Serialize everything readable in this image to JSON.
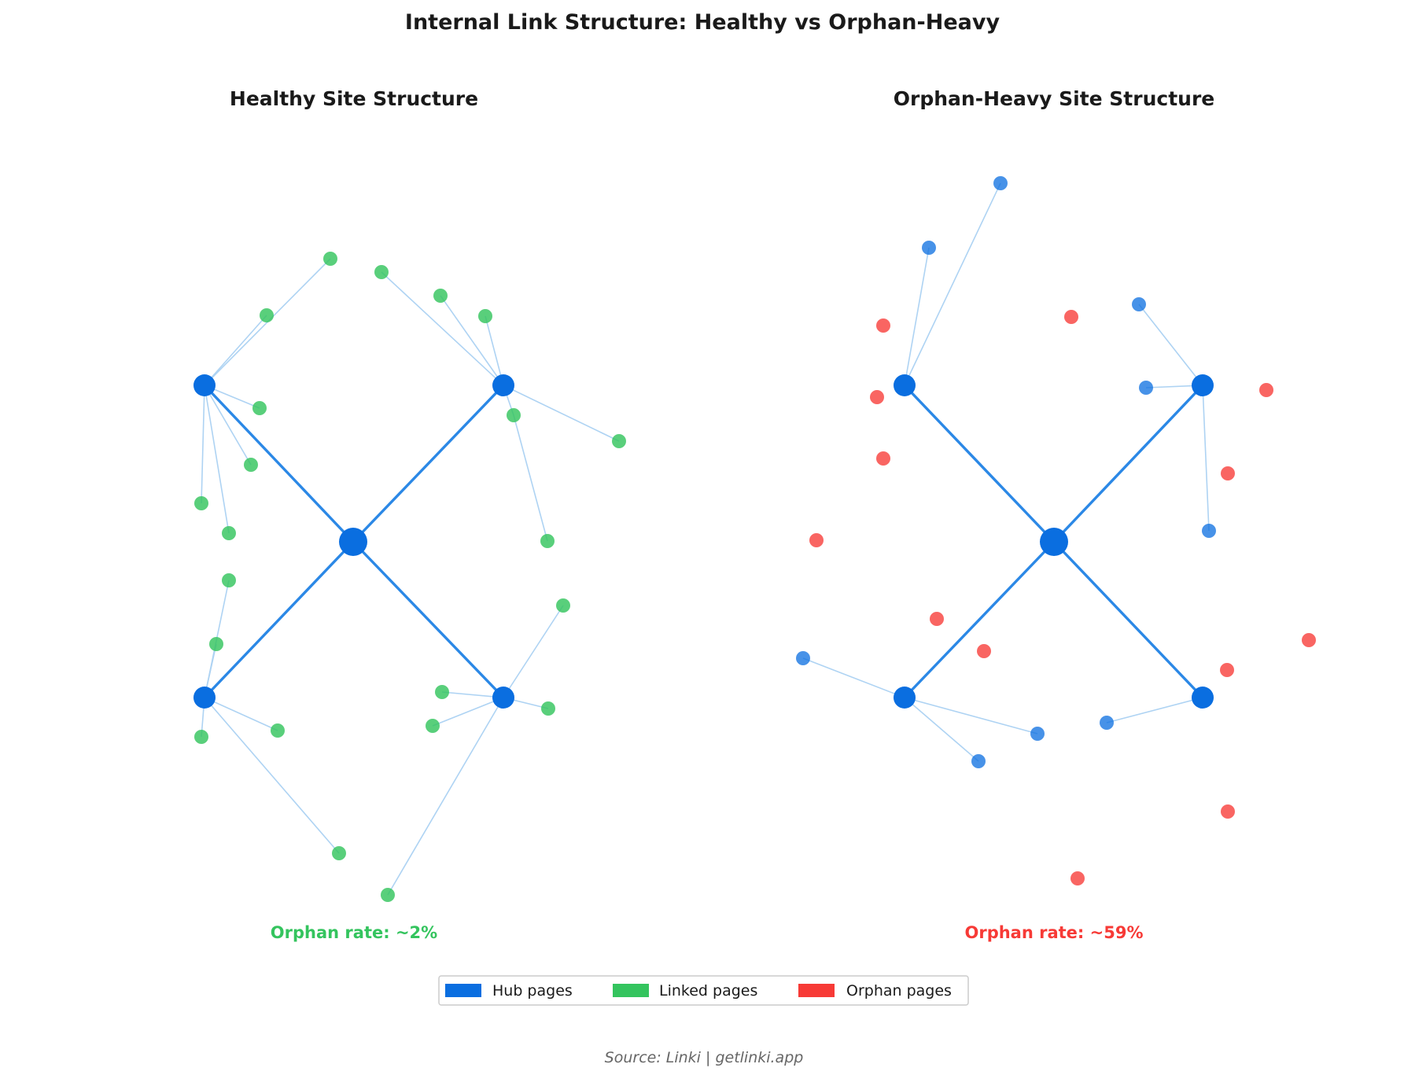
{
  "title": "Internal Link Structure: Healthy vs Orphan-Heavy",
  "source": "Source: Linki | getlinki.app",
  "colors": {
    "hub": "#0a6ee0",
    "linked": "#34c45e",
    "orphan": "#f73a36",
    "edge_light": "#aed3f3",
    "edge_hub": "#2b88e6"
  },
  "legend": [
    {
      "label": "Hub pages",
      "color": "#0a6ee0"
    },
    {
      "label": "Linked pages",
      "color": "#34c45e"
    },
    {
      "label": "Orphan pages",
      "color": "#f73a36"
    }
  ],
  "panels": [
    {
      "title": "Healthy Site Structure",
      "rate_text": "Orphan rate: ~2%",
      "rate_color": "#34c45e"
    },
    {
      "title": "Orphan-Heavy Site Structure",
      "rate_text": "Orphan rate: ~59%",
      "rate_color": "#f73a36"
    }
  ]
}
